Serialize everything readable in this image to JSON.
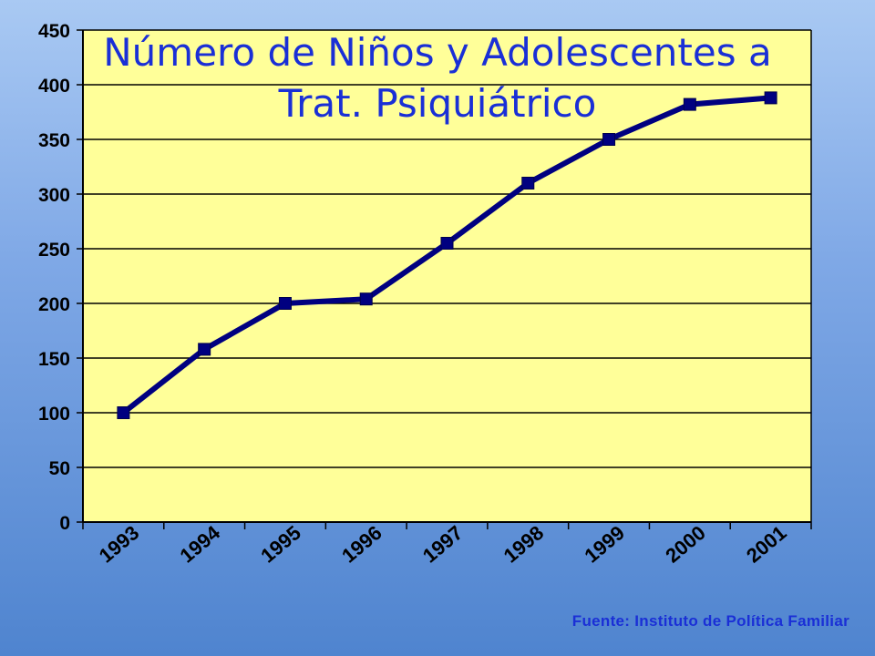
{
  "chart_data": {
    "type": "line",
    "title_lines": [
      "Número de Niños y Adolescentes a",
      "Trat. Psiquiátrico"
    ],
    "categories": [
      "1993",
      "1994",
      "1995",
      "1996",
      "1997",
      "1998",
      "1999",
      "2000",
      "2001"
    ],
    "values": [
      100,
      158,
      200,
      204,
      255,
      310,
      350,
      382,
      388
    ],
    "ylim": [
      0,
      450
    ],
    "yticks": [
      0,
      50,
      100,
      150,
      200,
      250,
      300,
      350,
      400,
      450
    ],
    "xlabel": "",
    "ylabel": "",
    "grid": true,
    "colors": {
      "line": "#000080",
      "marker": "#000080",
      "plot_background": "#ffff99",
      "gridline": "#000000",
      "title": "#1a2fd6"
    }
  },
  "source_note": "Fuente: Instituto de Política Familiar"
}
